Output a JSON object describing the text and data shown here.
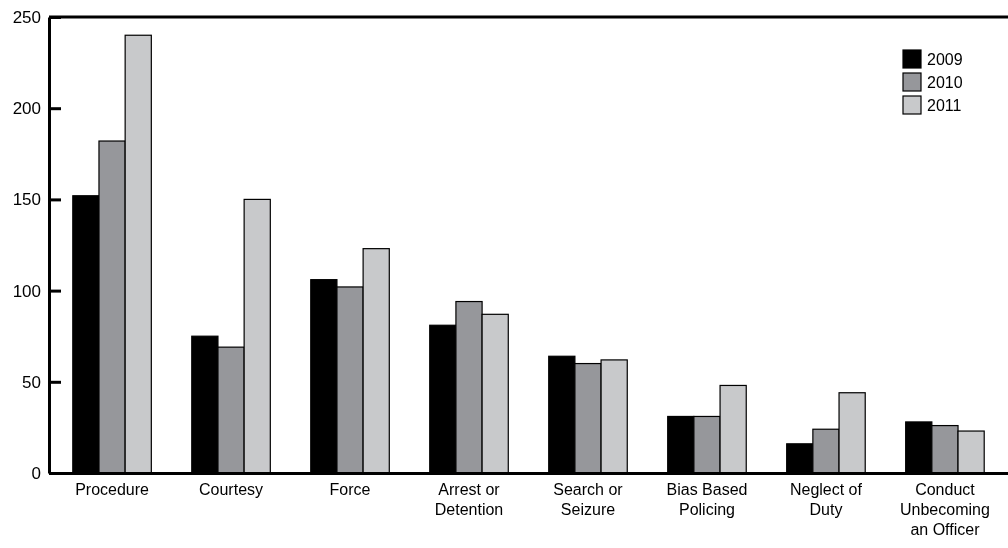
{
  "chart_data": {
    "type": "bar",
    "categories": [
      "Procedure",
      "Courtesy",
      "Force",
      "Arrest or Detention",
      "Search or Seizure",
      "Bias Based Policing",
      "Neglect of Duty",
      "Conduct Unbecoming an Officer"
    ],
    "series": [
      {
        "name": "2009",
        "color": "#000000",
        "values": [
          152,
          75,
          106,
          81,
          64,
          31,
          16,
          28
        ]
      },
      {
        "name": "2010",
        "color": "#96979b",
        "values": [
          182,
          69,
          102,
          94,
          60,
          31,
          24,
          26
        ]
      },
      {
        "name": "2011",
        "color": "#c8c9cb",
        "values": [
          240,
          150,
          123,
          87,
          62,
          48,
          44,
          23
        ]
      }
    ],
    "ylim": [
      0,
      250
    ],
    "yticks": [
      0,
      50,
      100,
      150,
      200,
      250
    ],
    "grid": false,
    "legend": "top right"
  }
}
